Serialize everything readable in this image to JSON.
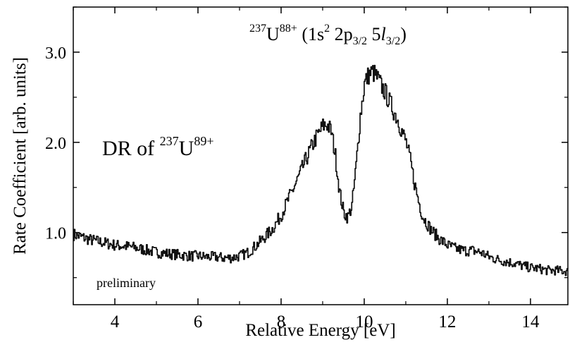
{
  "chart_data": {
    "type": "line",
    "title": "",
    "xlabel": "Relative Energy [eV]",
    "ylabel": "Rate Coefficient [arb. units]",
    "xlim": [
      3.0,
      14.9
    ],
    "ylim": [
      0.2,
      3.5
    ],
    "x_ticks": [
      4,
      6,
      8,
      10,
      12,
      14
    ],
    "x_tick_labels": [
      "4",
      "6",
      "8",
      "10",
      "12",
      "14"
    ],
    "y_ticks": [
      1.0,
      2.0,
      3.0
    ],
    "y_tick_labels": [
      "1.0",
      "2.0",
      "3.0"
    ],
    "grid": false,
    "legend": "none",
    "line_color": "#111111",
    "annotations": {
      "top": {
        "iso": "237",
        "el": "U",
        "charge": "88+",
        "open": " (1s",
        "two": "2",
        "p": " 2p",
        "psub": "3/2",
        "five": " 5",
        "l": "l",
        "lsub": "3/2",
        "close": ")"
      },
      "left": {
        "lead": "DR of ",
        "iso": "237",
        "el": "U",
        "charge": "89+"
      },
      "note": "preliminary"
    },
    "series": [
      {
        "x": [
          3.0,
          3.2,
          3.4,
          3.6,
          3.8,
          4.0,
          4.2,
          4.4,
          4.6,
          4.8,
          5.0,
          5.2,
          5.4,
          5.6,
          5.8,
          6.0,
          6.2,
          6.4,
          6.6,
          6.8,
          7.0,
          7.2,
          7.4,
          7.6,
          7.8,
          8.0,
          8.2,
          8.4,
          8.6,
          8.8,
          9.0,
          9.1,
          9.2,
          9.3,
          9.4,
          9.5,
          9.6,
          9.7,
          9.8,
          9.9,
          10.0,
          10.1,
          10.2,
          10.3,
          10.4,
          10.5,
          10.6,
          10.8,
          11.0,
          11.1,
          11.2,
          11.3,
          11.4,
          11.6,
          11.8,
          12.0,
          12.2,
          12.4,
          12.6,
          12.8,
          13.0,
          13.2,
          13.4,
          13.6,
          13.8,
          14.0,
          14.2,
          14.4,
          14.6,
          14.9
        ],
        "values": [
          0.98,
          0.95,
          0.92,
          0.9,
          0.88,
          0.86,
          0.85,
          0.84,
          0.82,
          0.8,
          0.78,
          0.77,
          0.76,
          0.75,
          0.74,
          0.74,
          0.73,
          0.73,
          0.72,
          0.72,
          0.74,
          0.78,
          0.86,
          0.95,
          1.05,
          1.2,
          1.4,
          1.6,
          1.82,
          2.02,
          2.18,
          2.2,
          2.12,
          1.85,
          1.45,
          1.22,
          1.17,
          1.3,
          1.75,
          2.3,
          2.65,
          2.75,
          2.78,
          2.72,
          2.63,
          2.55,
          2.45,
          2.25,
          2.0,
          1.8,
          1.55,
          1.35,
          1.18,
          1.03,
          0.93,
          0.86,
          0.82,
          0.8,
          0.8,
          0.78,
          0.73,
          0.7,
          0.68,
          0.66,
          0.63,
          0.61,
          0.6,
          0.58,
          0.58,
          0.57
        ]
      }
    ]
  }
}
